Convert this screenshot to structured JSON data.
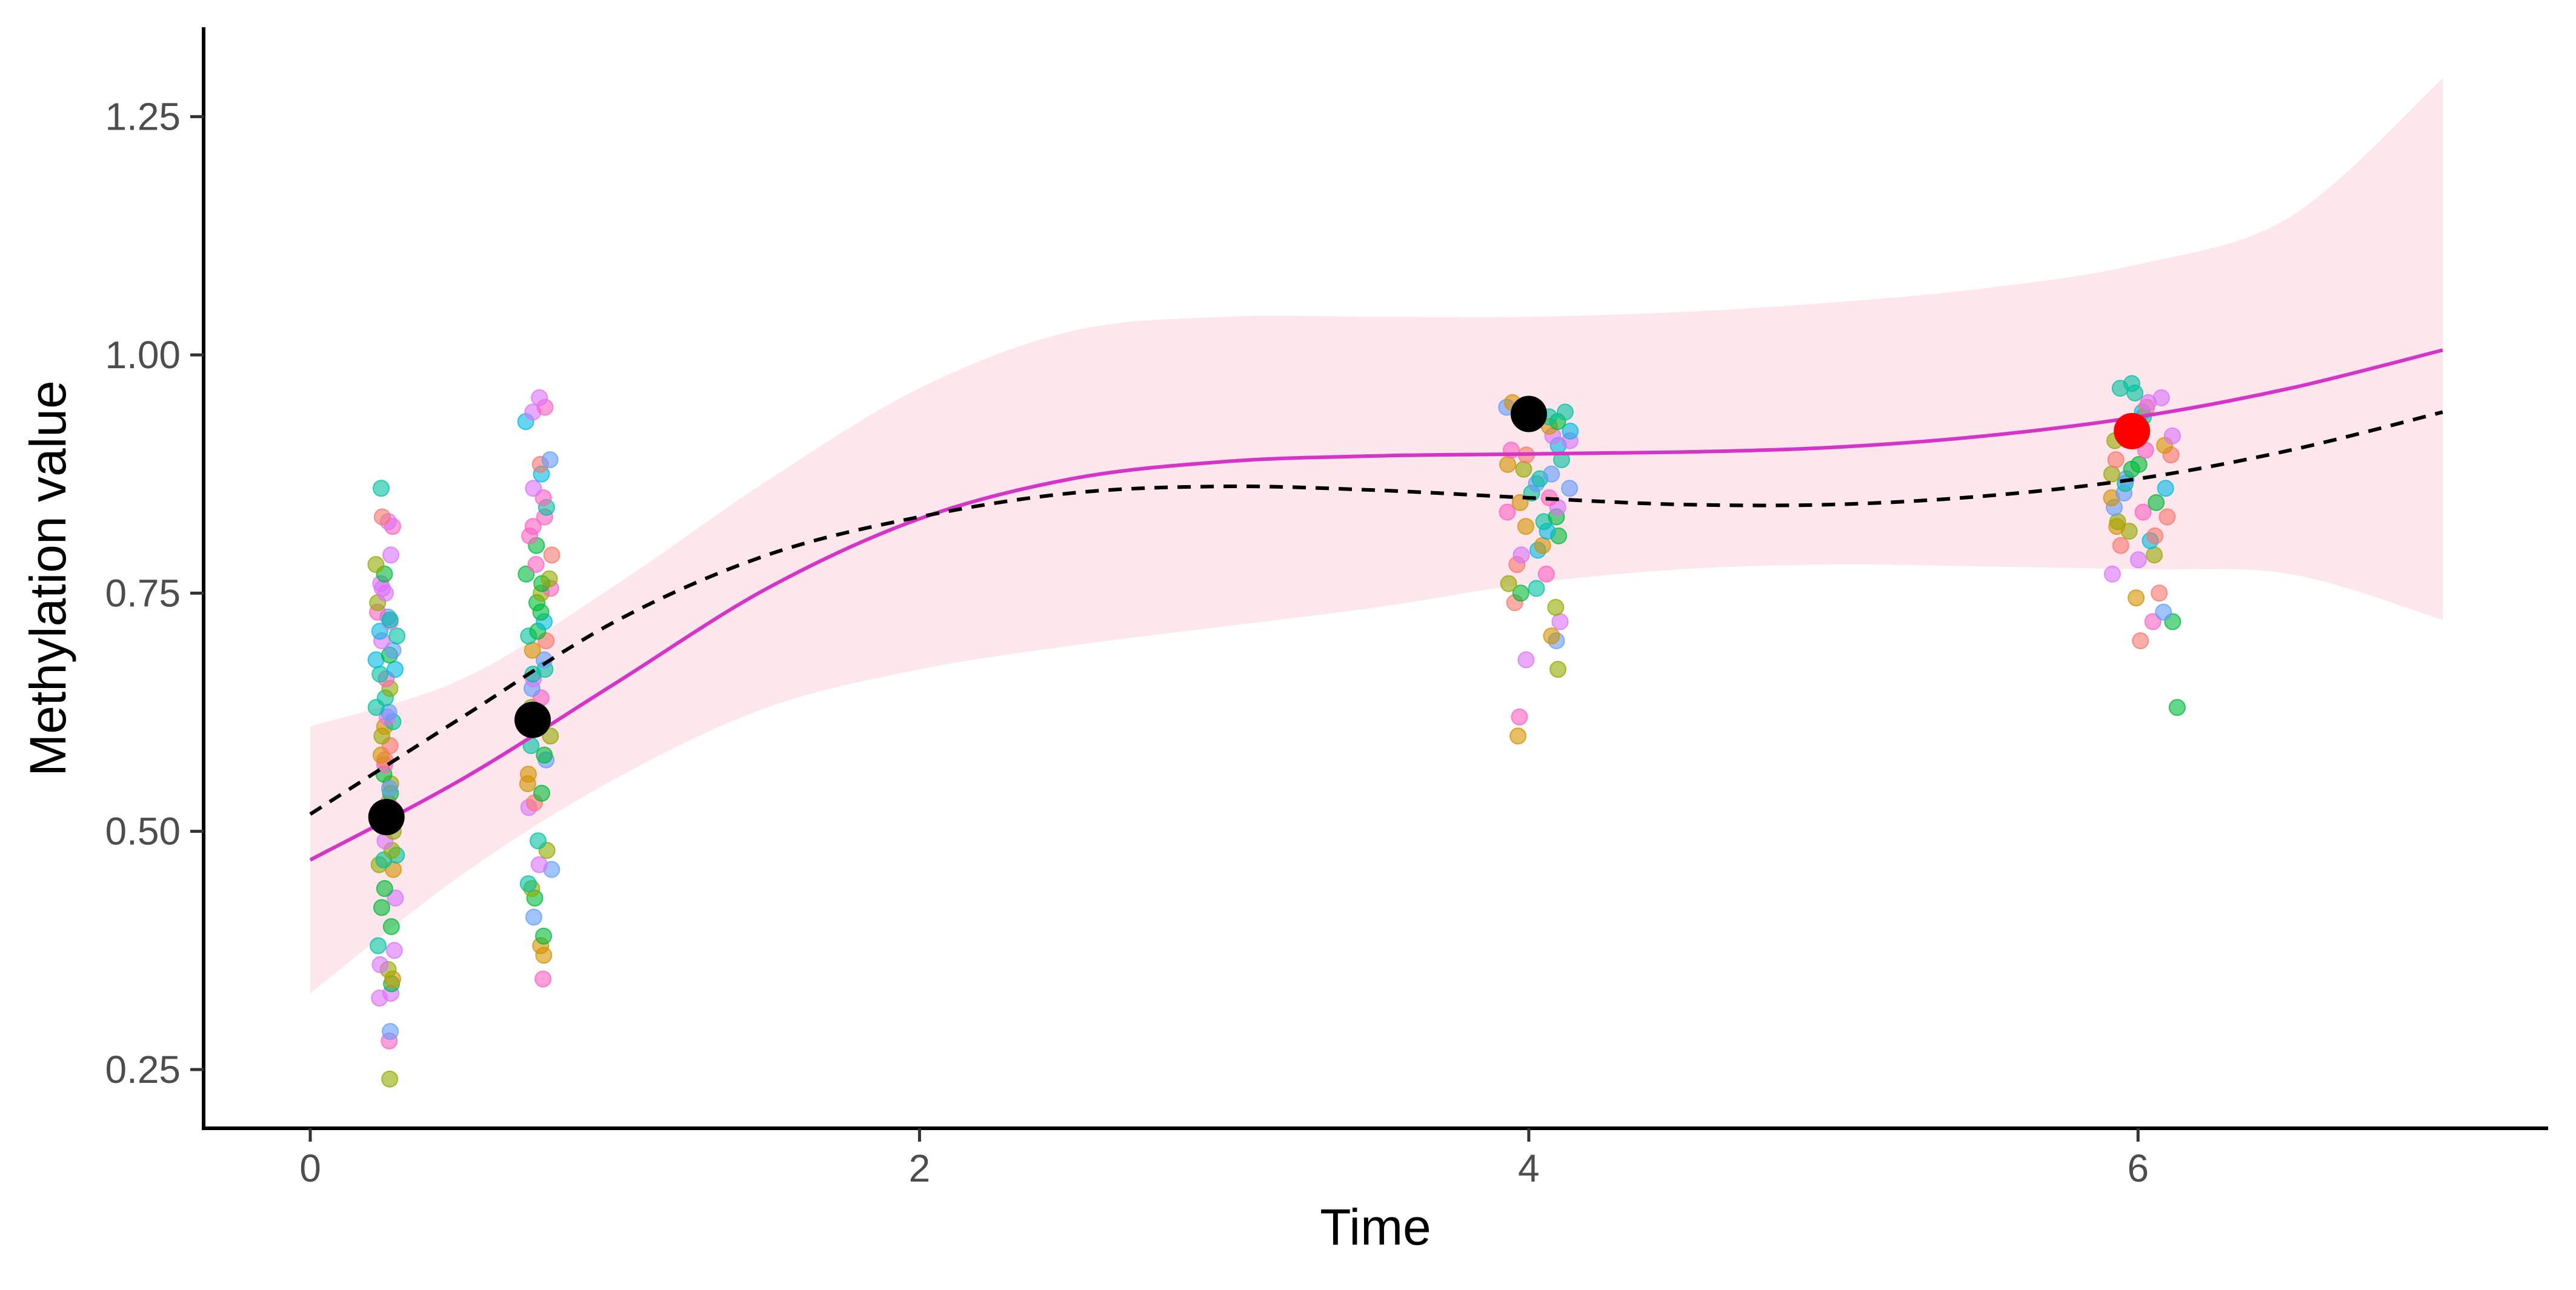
{
  "chart_data": {
    "type": "scatter",
    "title": "",
    "xlabel": "Time",
    "ylabel": "Methylation value",
    "xlim": [
      -0.35,
      7.45
    ],
    "ylim": [
      0.19,
      1.33
    ],
    "x_ticks": [
      {
        "value": 0,
        "label": "0"
      },
      {
        "value": 2,
        "label": "2"
      },
      {
        "value": 4,
        "label": "4"
      },
      {
        "value": 6,
        "label": "6"
      }
    ],
    "y_ticks": [
      {
        "value": 0.25,
        "label": "0.25"
      },
      {
        "value": 0.5,
        "label": "0.50"
      },
      {
        "value": 0.75,
        "label": "0.75"
      },
      {
        "value": 1.0,
        "label": "1.00"
      },
      {
        "value": 1.25,
        "label": "1.25"
      }
    ],
    "grid": false,
    "legend": "none",
    "colors": {
      "fit_line": "#D633C8",
      "confidence_band": "#FDE7EC",
      "dashed_line": "#000000",
      "group_mean": "#000000",
      "highlight_mean": "#FF0000",
      "jitter_palette": [
        "#F8766D",
        "#D39200",
        "#93AA00",
        "#00BA38",
        "#00C19F",
        "#00B9E3",
        "#619CFF",
        "#DB72FB",
        "#FF61C3"
      ]
    },
    "fit_curve": {
      "x": [
        0,
        0.5,
        1,
        1.5,
        2,
        2.5,
        3,
        3.5,
        4,
        4.5,
        5,
        5.5,
        6,
        6.5,
        7
      ],
      "y": [
        0.47,
        0.555,
        0.655,
        0.755,
        0.828,
        0.87,
        0.888,
        0.894,
        0.896,
        0.898,
        0.903,
        0.915,
        0.935,
        0.965,
        1.005
      ]
    },
    "confidence_band": {
      "x": [
        0,
        0.5,
        1,
        1.5,
        2,
        2.5,
        3,
        3.5,
        4,
        4.5,
        5,
        5.5,
        6,
        6.5,
        7
      ],
      "lower": [
        0.33,
        0.455,
        0.555,
        0.63,
        0.67,
        0.695,
        0.715,
        0.735,
        0.76,
        0.775,
        0.78,
        0.778,
        0.775,
        0.77,
        0.722
      ],
      "upper": [
        0.61,
        0.66,
        0.758,
        0.868,
        0.965,
        1.025,
        1.04,
        1.04,
        1.04,
        1.045,
        1.055,
        1.07,
        1.095,
        1.145,
        1.29
      ]
    },
    "dashed_curve": {
      "x": [
        0,
        0.5,
        1,
        1.5,
        2,
        2.5,
        3,
        3.5,
        4,
        4.5,
        5,
        5.5,
        6,
        6.5,
        7
      ],
      "y": [
        0.518,
        0.62,
        0.72,
        0.79,
        0.83,
        0.855,
        0.862,
        0.858,
        0.85,
        0.843,
        0.843,
        0.852,
        0.87,
        0.9,
        0.94
      ]
    },
    "group_means": [
      {
        "x": 0.25,
        "y": 0.515,
        "highlight": false
      },
      {
        "x": 0.73,
        "y": 0.617,
        "highlight": false
      },
      {
        "x": 4.0,
        "y": 0.938,
        "highlight": false
      },
      {
        "x": 5.98,
        "y": 0.92,
        "highlight": true
      }
    ],
    "jitter_groups": [
      {
        "x_center": 0.25,
        "x_spread": 0.035,
        "y_values": [
          0.24,
          0.28,
          0.29,
          0.325,
          0.33,
          0.34,
          0.345,
          0.355,
          0.36,
          0.375,
          0.38,
          0.4,
          0.42,
          0.43,
          0.44,
          0.46,
          0.465,
          0.47,
          0.475,
          0.48,
          0.49,
          0.5,
          0.51,
          0.52,
          0.53,
          0.54,
          0.55,
          0.56,
          0.57,
          0.575,
          0.58,
          0.59,
          0.6,
          0.61,
          0.615,
          0.62,
          0.625,
          0.63,
          0.64,
          0.65,
          0.66,
          0.665,
          0.67,
          0.68,
          0.685,
          0.69,
          0.7,
          0.705,
          0.71,
          0.72,
          0.725,
          0.73,
          0.74,
          0.75,
          0.755,
          0.76,
          0.77,
          0.78,
          0.79,
          0.82,
          0.825,
          0.83,
          0.86,
          0.545,
          0.722
        ]
      },
      {
        "x_center": 0.75,
        "x_spread": 0.045,
        "y_values": [
          0.345,
          0.37,
          0.38,
          0.39,
          0.41,
          0.43,
          0.44,
          0.445,
          0.46,
          0.465,
          0.48,
          0.49,
          0.525,
          0.53,
          0.54,
          0.55,
          0.56,
          0.575,
          0.58,
          0.59,
          0.6,
          0.61,
          0.62,
          0.63,
          0.64,
          0.65,
          0.66,
          0.665,
          0.67,
          0.68,
          0.69,
          0.7,
          0.705,
          0.71,
          0.72,
          0.73,
          0.74,
          0.75,
          0.755,
          0.76,
          0.765,
          0.77,
          0.78,
          0.79,
          0.8,
          0.81,
          0.82,
          0.83,
          0.84,
          0.85,
          0.86,
          0.875,
          0.885,
          0.89,
          0.93,
          0.94,
          0.945,
          0.955
        ]
      },
      {
        "x_center": 4.03,
        "x_spread": 0.11,
        "y_values": [
          0.6,
          0.62,
          0.67,
          0.68,
          0.7,
          0.705,
          0.72,
          0.735,
          0.74,
          0.75,
          0.755,
          0.76,
          0.77,
          0.78,
          0.79,
          0.795,
          0.8,
          0.81,
          0.815,
          0.82,
          0.825,
          0.83,
          0.835,
          0.84,
          0.845,
          0.85,
          0.855,
          0.86,
          0.865,
          0.87,
          0.875,
          0.88,
          0.885,
          0.89,
          0.895,
          0.9,
          0.905,
          0.91,
          0.915,
          0.92,
          0.925,
          0.93,
          0.935,
          0.94,
          0.945,
          0.95
        ]
      },
      {
        "x_center": 6.02,
        "x_spread": 0.11,
        "y_values": [
          0.63,
          0.7,
          0.72,
          0.72,
          0.73,
          0.745,
          0.75,
          0.77,
          0.785,
          0.79,
          0.8,
          0.805,
          0.81,
          0.815,
          0.82,
          0.825,
          0.83,
          0.835,
          0.84,
          0.845,
          0.85,
          0.855,
          0.86,
          0.865,
          0.87,
          0.875,
          0.88,
          0.885,
          0.89,
          0.895,
          0.9,
          0.905,
          0.91,
          0.915,
          0.92,
          0.925,
          0.93,
          0.935,
          0.94,
          0.945,
          0.95,
          0.955,
          0.96,
          0.965,
          0.97
        ]
      }
    ]
  }
}
